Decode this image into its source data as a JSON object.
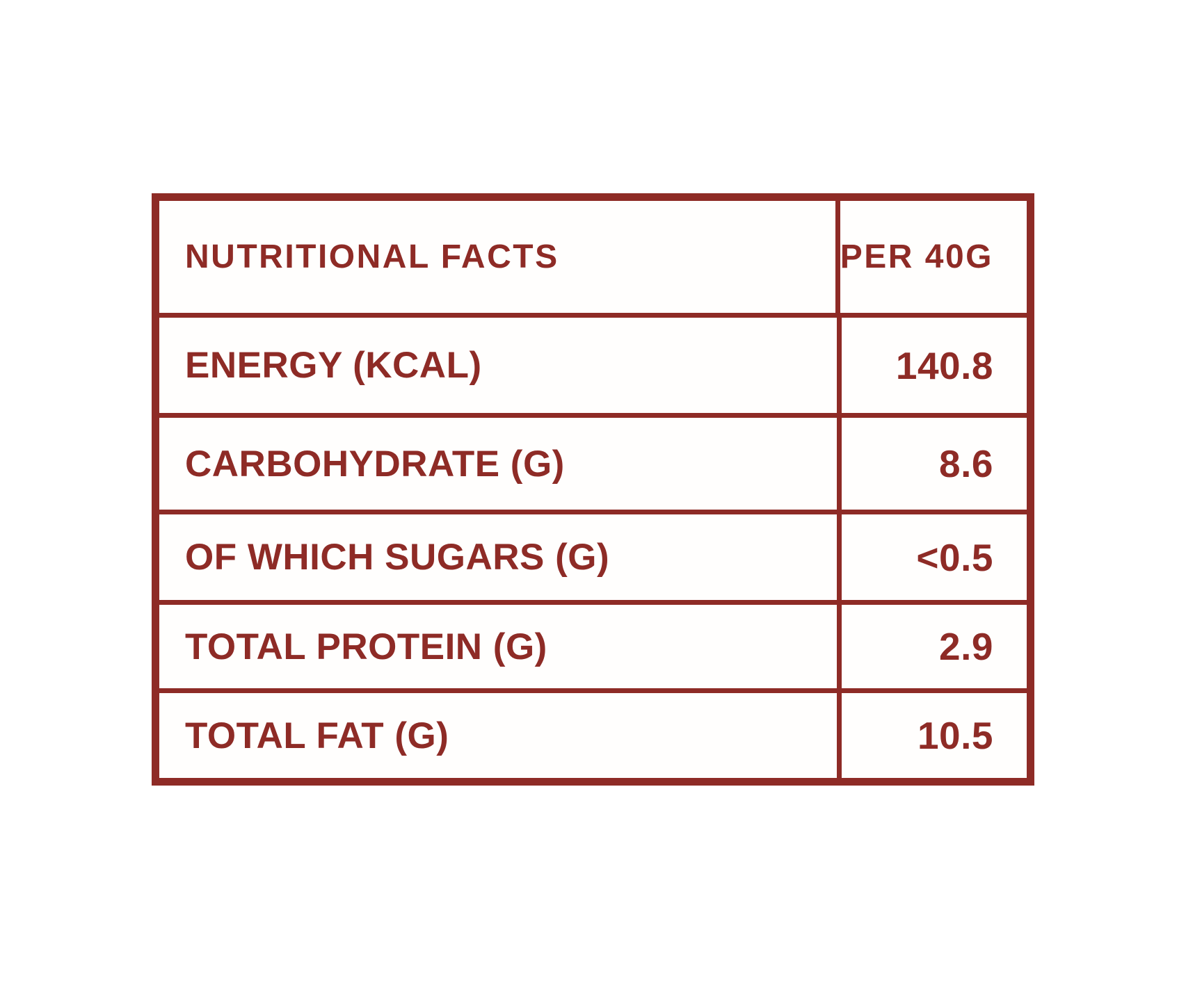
{
  "document": {
    "colors": {
      "accent": "#8E2B26",
      "background": "#FFFFFF"
    },
    "table": {
      "columns": [
        {
          "label": "NUTRITIONAL FACTS"
        },
        {
          "label": "PER 40G"
        }
      ],
      "rows": [
        {
          "label": "ENERGY (KCAL)",
          "value": "140.8"
        },
        {
          "label": "CARBOHYDRATE (G)",
          "value": "8.6"
        },
        {
          "label": "OF WHICH SUGARS (G)",
          "value": "<0.5"
        },
        {
          "label": "TOTAL PROTEIN (G)",
          "value": "2.9"
        },
        {
          "label": "TOTAL FAT (G)",
          "value": "10.5"
        }
      ]
    }
  }
}
